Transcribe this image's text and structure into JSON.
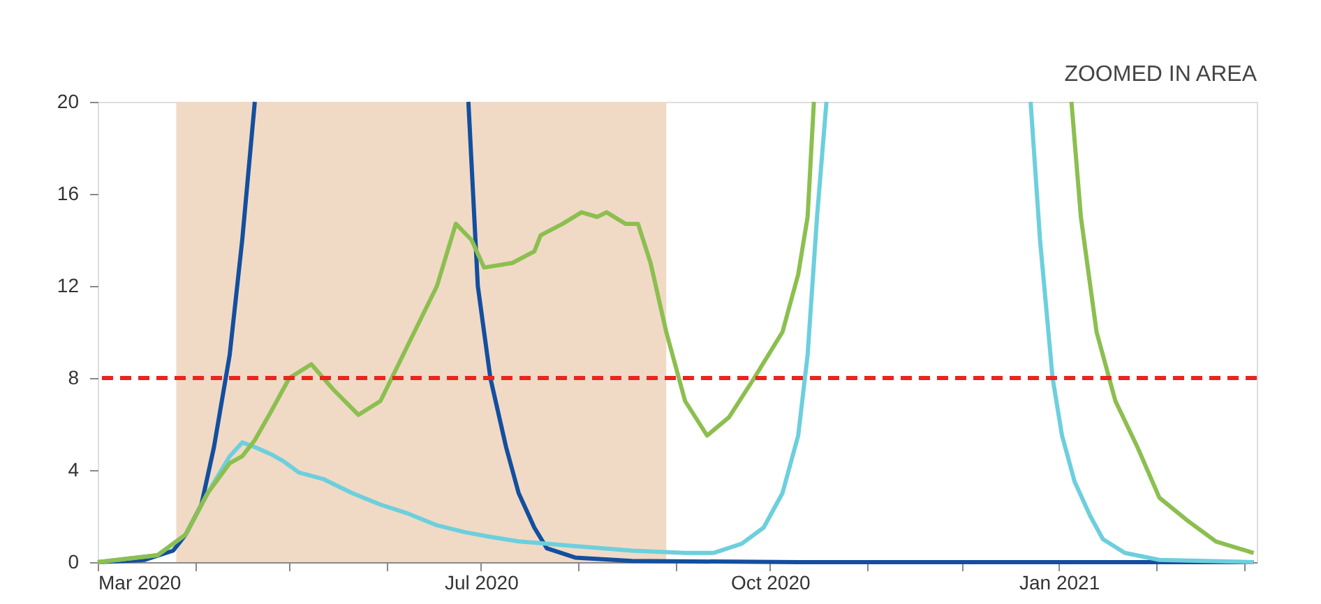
{
  "chart_data": {
    "type": "line",
    "annotations": [
      "ZOOMED IN AREA"
    ],
    "xlim": [
      "2020-03-01",
      "2021-03-05"
    ],
    "xticks": [
      {
        "value": "2020-03-01",
        "label": "Mar 2020"
      },
      {
        "value": "2020-04-01",
        "label": null
      },
      {
        "value": "2020-05-01",
        "label": null
      },
      {
        "value": "2020-06-01",
        "label": null
      },
      {
        "value": "2020-07-01",
        "label": "Jul 2020"
      },
      {
        "value": "2020-08-01",
        "label": null
      },
      {
        "value": "2020-09-01",
        "label": null
      },
      {
        "value": "2020-10-01",
        "label": "Oct 2020"
      },
      {
        "value": "2020-11-01",
        "label": null
      },
      {
        "value": "2020-12-01",
        "label": null
      },
      {
        "value": "2021-01-01",
        "label": "Jan 2021"
      },
      {
        "value": "2021-02-01",
        "label": null
      },
      {
        "value": "2021-03-01",
        "label": null
      }
    ],
    "ylim": [
      0,
      20
    ],
    "yticks": [
      0,
      4,
      8,
      12,
      16,
      20
    ],
    "grid": false,
    "legend": false,
    "marker": "none",
    "line_style": "solid",
    "bands": [
      {
        "axis": "x",
        "from": "2020-03-26",
        "to": "2020-08-29",
        "color": "#f0dac6"
      }
    ],
    "ref_lines": [
      {
        "axis": "y",
        "value": 8,
        "color": "#e8261f",
        "line_style": "dashed"
      }
    ],
    "series": [
      {
        "color": "#134f9e",
        "x": [
          "2020-03-01",
          "2020-03-16",
          "2020-03-25",
          "2020-03-29",
          "2020-04-03",
          "2020-04-07",
          "2020-04-12",
          "2020-04-16",
          "2020-04-20",
          "2020-04-21",
          "2020-06-26",
          "2020-06-27",
          "2020-06-30",
          "2020-07-04",
          "2020-07-09",
          "2020-07-13",
          "2020-07-18",
          "2020-07-22",
          "2020-07-31",
          "2020-08-18",
          "2020-10-10",
          "2021-03-04"
        ],
        "values": [
          0,
          0.1,
          0.5,
          1.2,
          2.5,
          5,
          9,
          14,
          20,
          null,
          null,
          20,
          12,
          8,
          5,
          3,
          1.5,
          0.6,
          0.2,
          0.05,
          0,
          0
        ]
      },
      {
        "color": "#6dcfdd",
        "x": [
          "2020-03-01",
          "2020-03-20",
          "2020-03-29",
          "2020-04-05",
          "2020-04-12",
          "2020-04-16",
          "2020-04-20",
          "2020-04-25",
          "2020-04-29",
          "2020-05-04",
          "2020-05-12",
          "2020-05-21",
          "2020-05-30",
          "2020-06-08",
          "2020-06-17",
          "2020-06-26",
          "2020-07-04",
          "2020-07-13",
          "2020-07-31",
          "2020-08-18",
          "2020-09-04",
          "2020-09-13",
          "2020-09-22",
          "2020-09-29",
          "2020-10-05",
          "2020-10-10",
          "2020-10-13",
          "2020-10-16",
          "2020-10-19",
          "2020-10-20",
          "2020-12-22",
          "2020-12-23",
          "2020-12-26",
          "2020-12-30",
          "2021-01-02",
          "2021-01-06",
          "2021-01-11",
          "2021-01-15",
          "2021-01-22",
          "2021-02-02",
          "2021-03-04"
        ],
        "values": [
          0,
          0.3,
          1.2,
          3,
          4.6,
          5.2,
          5,
          4.7,
          4.4,
          3.9,
          3.6,
          3,
          2.5,
          2.1,
          1.6,
          1.3,
          1.1,
          0.9,
          0.7,
          0.5,
          0.4,
          0.4,
          0.8,
          1.5,
          3,
          5.5,
          9,
          15,
          20,
          null,
          null,
          20,
          14,
          8,
          5.5,
          3.5,
          2,
          1,
          0.4,
          0.1,
          0
        ]
      },
      {
        "color": "#8cbf4f",
        "x": [
          "2020-03-01",
          "2020-03-20",
          "2020-03-29",
          "2020-04-05",
          "2020-04-12",
          "2020-04-16",
          "2020-04-20",
          "2020-04-25",
          "2020-05-01",
          "2020-05-08",
          "2020-05-15",
          "2020-05-23",
          "2020-05-30",
          "2020-06-08",
          "2020-06-17",
          "2020-06-23",
          "2020-06-28",
          "2020-07-02",
          "2020-07-11",
          "2020-07-18",
          "2020-07-20",
          "2020-07-27",
          "2020-08-02",
          "2020-08-07",
          "2020-08-10",
          "2020-08-16",
          "2020-08-20",
          "2020-08-24",
          "2020-08-29",
          "2020-09-04",
          "2020-09-11",
          "2020-09-18",
          "2020-09-26",
          "2020-10-05",
          "2020-10-10",
          "2020-10-13",
          "2020-10-15",
          "2020-10-16",
          "2021-01-04",
          "2021-01-05",
          "2021-01-08",
          "2021-01-13",
          "2021-01-19",
          "2021-01-26",
          "2021-02-02",
          "2021-02-11",
          "2021-02-20",
          "2021-03-04"
        ],
        "values": [
          0,
          0.3,
          1.2,
          3,
          4.3,
          4.6,
          5.3,
          6.5,
          8,
          8.6,
          7.5,
          6.4,
          7,
          9.5,
          12,
          14.7,
          14,
          12.8,
          13,
          13.5,
          14.2,
          14.7,
          15.2,
          15,
          15.2,
          14.7,
          14.7,
          13,
          10,
          7,
          5.5,
          6.3,
          8,
          10,
          12.5,
          15,
          20,
          null,
          null,
          20,
          15,
          10,
          7,
          5,
          2.8,
          1.8,
          0.9,
          0.4
        ]
      }
    ]
  }
}
